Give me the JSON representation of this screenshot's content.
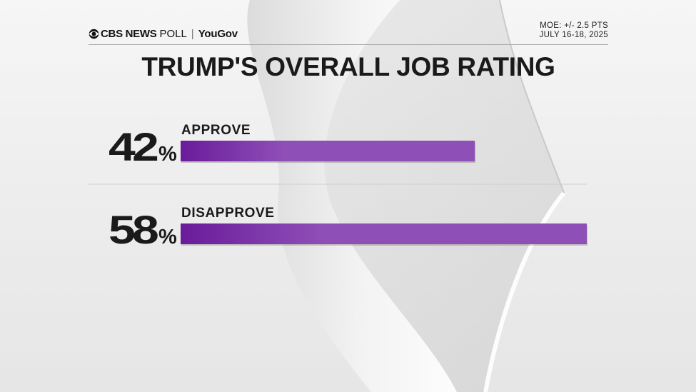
{
  "header": {
    "brand_main": "CBS NEWS",
    "brand_poll": "POLL",
    "brand_separator": "|",
    "brand_partner": "YouGov",
    "moe": "MOE: +/- 2.5 PTS",
    "date": "JULY 16-18, 2025"
  },
  "colors": {
    "bar_start": "#6a1b9a",
    "bar_end": "#8e4fb7",
    "text": "#1a1a1a"
  },
  "chart_data": {
    "type": "bar",
    "orientation": "horizontal",
    "title": "TRUMP'S OVERALL JOB RATING",
    "categories": [
      "APPROVE",
      "DISAPPROVE"
    ],
    "values": [
      42,
      58
    ],
    "value_labels": [
      "42",
      "58"
    ],
    "unit": "%",
    "xlim": [
      0,
      58
    ],
    "grid": false,
    "legend": "none"
  }
}
